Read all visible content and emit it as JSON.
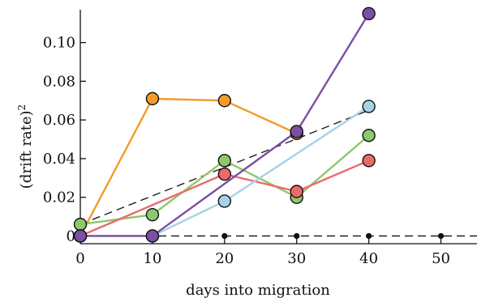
{
  "chart_data": {
    "type": "line",
    "title": "",
    "xlabel": "days into migration",
    "ylabel": "(drift rate)",
    "ylabel_superscript": "2",
    "xlim": [
      0,
      55
    ],
    "ylim": [
      -0.004,
      0.117
    ],
    "x_ticks": [
      0,
      10,
      20,
      30,
      40,
      50
    ],
    "x_tick_labels": [
      "0",
      "10",
      "20",
      "30",
      "40",
      "50"
    ],
    "y_ticks": [
      0,
      0.02,
      0.04,
      0.06,
      0.08,
      0.1
    ],
    "y_tick_labels": [
      "0",
      "0.02",
      "0.04",
      "0.06",
      "0.08",
      "0.10"
    ],
    "grid": false,
    "legend": "none",
    "series": [
      {
        "color": "#f39b2b",
        "x": [
          0,
          10,
          20,
          30
        ],
        "y": [
          0.0,
          0.071,
          0.07,
          0.053
        ]
      },
      {
        "color": "#8cc86c",
        "x": [
          0,
          10,
          20,
          30,
          40
        ],
        "y": [
          0.006,
          0.011,
          0.039,
          0.02,
          0.052
        ]
      },
      {
        "color": "#ea6a6a",
        "x": [
          0,
          20,
          30,
          40
        ],
        "y": [
          0.0,
          0.032,
          0.023,
          0.039
        ]
      },
      {
        "color": "#a9d1e6",
        "x": [
          0,
          10,
          20,
          40
        ],
        "y": [
          0.0,
          0.0,
          0.018,
          0.067
        ]
      },
      {
        "color": "#7b4fa5",
        "x": [
          0,
          10,
          30,
          40
        ],
        "y": [
          0.0,
          0.0,
          0.054,
          0.115
        ]
      }
    ],
    "reference_lines": [
      {
        "style": "dashed",
        "x": [
          0,
          40
        ],
        "y": [
          0.006,
          0.065
        ]
      },
      {
        "style": "dashed",
        "x": [
          0,
          55
        ],
        "y": [
          0.0,
          0.0
        ]
      }
    ],
    "baseline_points": {
      "x": [
        20,
        30,
        40,
        50
      ],
      "y": [
        0,
        0,
        0,
        0
      ]
    }
  }
}
